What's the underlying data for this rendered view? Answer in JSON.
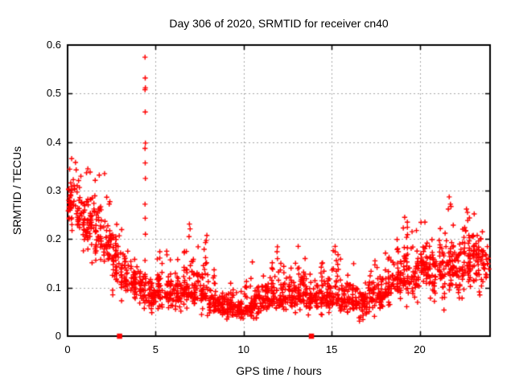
{
  "title": "Day 306 of 2020, SRMTID for receiver cn40",
  "colors": {
    "marker": "#ff0000",
    "grid": "#a8a8a8",
    "axis": "#000000",
    "text": "#000000",
    "background": "#ffffff"
  },
  "chart_data": {
    "type": "scatter",
    "title": "Day 306 of 2020, SRMTID for receiver cn40",
    "xlabel": "GPS time / hours",
    "ylabel": "SRMTID / TECUs",
    "xlim": [
      0,
      24
    ],
    "ylim": [
      0,
      0.6
    ],
    "x_ticks": [
      0,
      5,
      10,
      15,
      20
    ],
    "x_tick_labels": [
      "0",
      "5",
      "10",
      "15",
      "20"
    ],
    "y_ticks": [
      0,
      0.1,
      0.2,
      0.3,
      0.4,
      0.5,
      0.6
    ],
    "y_tick_labels": [
      "0",
      "0.1",
      "0.2",
      "0.3",
      "0.4",
      "0.5",
      "0.6"
    ],
    "grid": true,
    "legend": false,
    "marker": "plus",
    "marker_color": "#ff0000",
    "axis_marker_squares_x": [
      2.95,
      13.85
    ],
    "outlier_points": [
      [
        0.23,
        0.366
      ],
      [
        0.45,
        0.358
      ],
      [
        1.15,
        0.345
      ],
      [
        1.28,
        0.338
      ],
      [
        1.8,
        0.332
      ],
      [
        2.1,
        0.335
      ],
      [
        4.4,
        0.575
      ],
      [
        4.41,
        0.532
      ],
      [
        4.42,
        0.512
      ],
      [
        4.4,
        0.508
      ],
      [
        4.41,
        0.462
      ],
      [
        4.42,
        0.398
      ],
      [
        4.4,
        0.387
      ],
      [
        4.41,
        0.357
      ],
      [
        4.42,
        0.325
      ],
      [
        4.4,
        0.272
      ],
      [
        4.41,
        0.243
      ],
      [
        4.42,
        0.21
      ],
      [
        4.4,
        0.156
      ],
      [
        4.41,
        0.123
      ],
      [
        6.92,
        0.231
      ],
      [
        6.96,
        0.221
      ],
      [
        6.9,
        0.205
      ],
      [
        7.88,
        0.197
      ],
      [
        11.9,
        0.174
      ],
      [
        13.1,
        0.185
      ],
      [
        15.2,
        0.185
      ],
      [
        19.15,
        0.245
      ],
      [
        19.3,
        0.235
      ],
      [
        20.3,
        0.235
      ],
      [
        21.68,
        0.287
      ],
      [
        21.75,
        0.272
      ],
      [
        22.66,
        0.262
      ],
      [
        22.72,
        0.255
      ],
      [
        23.1,
        0.252
      ]
    ],
    "density_bins": {
      "format": [
        "x_start",
        "count",
        "y_min",
        "y_mode",
        "y_max"
      ],
      "bin_width_hours": 0.5,
      "bins": [
        [
          0.0,
          42,
          0.2,
          0.28,
          0.37
        ],
        [
          0.5,
          42,
          0.17,
          0.25,
          0.33
        ],
        [
          1.0,
          42,
          0.15,
          0.23,
          0.35
        ],
        [
          1.5,
          42,
          0.13,
          0.21,
          0.33
        ],
        [
          2.0,
          40,
          0.12,
          0.19,
          0.31
        ],
        [
          2.5,
          40,
          0.08,
          0.15,
          0.25
        ],
        [
          3.0,
          40,
          0.07,
          0.12,
          0.22
        ],
        [
          3.5,
          40,
          0.06,
          0.11,
          0.17
        ],
        [
          4.0,
          36,
          0.05,
          0.1,
          0.16
        ],
        [
          4.5,
          42,
          0.04,
          0.08,
          0.13
        ],
        [
          5.0,
          40,
          0.05,
          0.09,
          0.2
        ],
        [
          5.5,
          40,
          0.05,
          0.09,
          0.18
        ],
        [
          6.0,
          40,
          0.04,
          0.09,
          0.19
        ],
        [
          6.5,
          42,
          0.05,
          0.1,
          0.23
        ],
        [
          7.0,
          40,
          0.04,
          0.09,
          0.2
        ],
        [
          7.5,
          40,
          0.04,
          0.09,
          0.21
        ],
        [
          8.0,
          40,
          0.03,
          0.07,
          0.14
        ],
        [
          8.5,
          40,
          0.03,
          0.065,
          0.12
        ],
        [
          9.0,
          40,
          0.03,
          0.06,
          0.11
        ],
        [
          9.5,
          40,
          0.02,
          0.055,
          0.1
        ],
        [
          10.0,
          40,
          0.03,
          0.06,
          0.17
        ],
        [
          10.5,
          40,
          0.03,
          0.07,
          0.14
        ],
        [
          11.0,
          40,
          0.04,
          0.08,
          0.15
        ],
        [
          11.5,
          40,
          0.04,
          0.08,
          0.19
        ],
        [
          12.0,
          40,
          0.04,
          0.08,
          0.15
        ],
        [
          12.5,
          40,
          0.04,
          0.08,
          0.16
        ],
        [
          13.0,
          40,
          0.05,
          0.09,
          0.19
        ],
        [
          13.5,
          40,
          0.04,
          0.08,
          0.15
        ],
        [
          14.0,
          40,
          0.04,
          0.08,
          0.16
        ],
        [
          14.5,
          40,
          0.03,
          0.075,
          0.14
        ],
        [
          15.0,
          40,
          0.04,
          0.085,
          0.19
        ],
        [
          15.5,
          40,
          0.04,
          0.08,
          0.16
        ],
        [
          16.0,
          40,
          0.03,
          0.075,
          0.15
        ],
        [
          16.5,
          40,
          0.03,
          0.07,
          0.14
        ],
        [
          17.0,
          40,
          0.04,
          0.08,
          0.16
        ],
        [
          17.5,
          40,
          0.04,
          0.09,
          0.17
        ],
        [
          18.0,
          40,
          0.05,
          0.1,
          0.18
        ],
        [
          18.5,
          40,
          0.05,
          0.11,
          0.2
        ],
        [
          19.0,
          42,
          0.06,
          0.13,
          0.27
        ],
        [
          19.5,
          40,
          0.06,
          0.12,
          0.22
        ],
        [
          20.0,
          42,
          0.07,
          0.14,
          0.24
        ],
        [
          20.5,
          40,
          0.06,
          0.13,
          0.22
        ],
        [
          21.0,
          40,
          0.05,
          0.13,
          0.25
        ],
        [
          21.5,
          42,
          0.06,
          0.15,
          0.29
        ],
        [
          22.0,
          40,
          0.07,
          0.14,
          0.26
        ],
        [
          22.5,
          42,
          0.08,
          0.16,
          0.28
        ],
        [
          23.0,
          44,
          0.08,
          0.16,
          0.26
        ],
        [
          23.5,
          30,
          0.06,
          0.14,
          0.23
        ]
      ]
    },
    "prng_seed": 306
  }
}
